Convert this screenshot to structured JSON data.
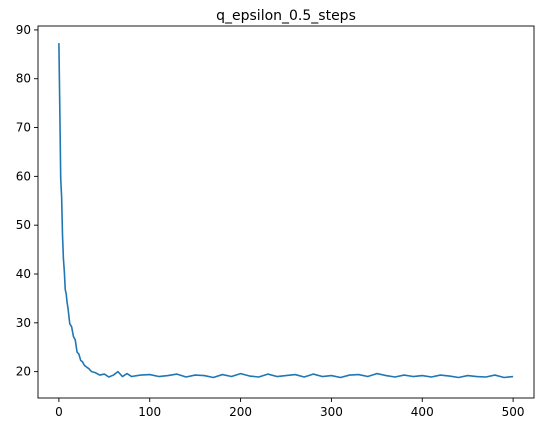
{
  "chart_data": {
    "type": "line",
    "title": "q_epsilon_0.5_steps",
    "xlabel": "",
    "ylabel": "",
    "xlim": [
      -23,
      523
    ],
    "ylim": [
      14.6,
      90.8
    ],
    "xticks": [
      0,
      100,
      200,
      300,
      400,
      500
    ],
    "yticks": [
      20,
      30,
      40,
      50,
      60,
      70,
      80,
      90
    ],
    "grid": false,
    "series": [
      {
        "color": "#1f77b4",
        "x": [
          0,
          1,
          2,
          3,
          4,
          5,
          6,
          7,
          8,
          9,
          10,
          12,
          14,
          16,
          18,
          20,
          22,
          24,
          26,
          28,
          30,
          33,
          36,
          40,
          45,
          50,
          55,
          60,
          65,
          70,
          75,
          80,
          90,
          100,
          110,
          120,
          130,
          140,
          150,
          160,
          170,
          180,
          190,
          200,
          210,
          220,
          230,
          240,
          250,
          260,
          270,
          280,
          290,
          300,
          310,
          320,
          330,
          340,
          350,
          360,
          370,
          380,
          390,
          400,
          410,
          420,
          430,
          440,
          450,
          460,
          470,
          480,
          490,
          500
        ],
        "y": [
          87.3,
          74.0,
          59.5,
          55.8,
          47.8,
          43.0,
          40.5,
          36.8,
          36.0,
          34.2,
          33.0,
          29.8,
          29.2,
          27.2,
          26.5,
          24.0,
          23.6,
          22.3,
          22.0,
          21.3,
          21.0,
          20.6,
          20.0,
          19.8,
          19.3,
          19.5,
          18.9,
          19.3,
          20.0,
          19.0,
          19.6,
          19.0,
          19.3,
          19.4,
          19.0,
          19.2,
          19.5,
          18.9,
          19.3,
          19.2,
          18.8,
          19.4,
          19.0,
          19.6,
          19.1,
          18.9,
          19.5,
          19.0,
          19.2,
          19.4,
          18.9,
          19.5,
          19.0,
          19.2,
          18.8,
          19.3,
          19.4,
          19.0,
          19.6,
          19.2,
          18.9,
          19.3,
          19.0,
          19.2,
          18.9,
          19.3,
          19.1,
          18.8,
          19.2,
          19.0,
          18.9,
          19.3,
          18.8,
          19.0
        ]
      }
    ]
  }
}
